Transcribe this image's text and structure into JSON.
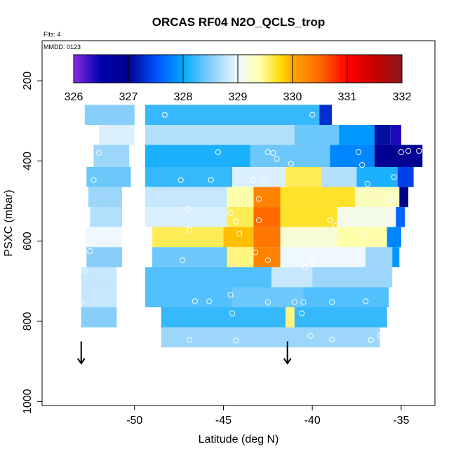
{
  "chart_data": {
    "type": "heatmap",
    "title": "ORCAS RF04 N2O_QCLS_trop",
    "subtitle_flts": "Flts: 4",
    "subtitle_mmdd": "MMDD: 0123",
    "xlabel": "Latitude (deg N)",
    "ylabel": "PSXC (mbar)",
    "xlim": [
      -55.2,
      -33.1
    ],
    "ylim": [
      1010,
      100
    ],
    "x_ticks": [
      -50,
      -45,
      -40,
      -35
    ],
    "x_tick_labels": [
      "-50",
      "-45",
      "-40",
      "-35"
    ],
    "y_ticks": [
      200,
      400,
      600,
      800,
      1000
    ],
    "y_tick_labels": [
      "200",
      "400",
      "600",
      "800",
      "1000"
    ],
    "colorbar": {
      "min": 326,
      "max": 332,
      "ticks": [
        326,
        327,
        328,
        329,
        330,
        331,
        332
      ],
      "tick_labels": [
        "326",
        "327",
        "328",
        "329",
        "330",
        "331",
        "332"
      ],
      "stops": [
        {
          "v": 326.0,
          "color": "#8a2be2"
        },
        {
          "v": 326.5,
          "color": "#0000b0"
        },
        {
          "v": 327.0,
          "color": "#00008b"
        },
        {
          "v": 327.5,
          "color": "#0050ff"
        },
        {
          "v": 328.0,
          "color": "#00aaff"
        },
        {
          "v": 328.5,
          "color": "#87cefa"
        },
        {
          "v": 329.0,
          "color": "#f0f8ff"
        },
        {
          "v": 329.4,
          "color": "#ffffaa"
        },
        {
          "v": 329.8,
          "color": "#ffd700"
        },
        {
          "v": 330.0,
          "color": "#ffa500"
        },
        {
          "v": 330.5,
          "color": "#ff6a00"
        },
        {
          "v": 331.0,
          "color": "#ff0000"
        },
        {
          "v": 331.5,
          "color": "#c80000"
        },
        {
          "v": 332.0,
          "color": "#8b1a1a"
        }
      ]
    },
    "rows": [
      {
        "p0": 260,
        "p1": 310,
        "segments": [
          {
            "lat0": -52.8,
            "lat1": -50.0,
            "value": 328.5
          },
          {
            "lat0": -49.4,
            "lat1": -39.6,
            "value": 328.2
          },
          {
            "lat0": -39.6,
            "lat1": -38.9,
            "value": 327.3
          }
        ]
      },
      {
        "p0": 310,
        "p1": 360,
        "segments": [
          {
            "lat0": -52.0,
            "lat1": -50.0,
            "value": 328.9
          },
          {
            "lat0": -49.4,
            "lat1": -41.0,
            "value": 328.7
          },
          {
            "lat0": -41.0,
            "lat1": -38.5,
            "value": 328.4
          },
          {
            "lat0": -38.5,
            "lat1": -36.5,
            "value": 327.9
          },
          {
            "lat0": -36.5,
            "lat1": -35.6,
            "value": 327.1
          },
          {
            "lat0": -35.6,
            "lat1": -35.0,
            "value": 326.4
          }
        ]
      },
      {
        "p0": 360,
        "p1": 415,
        "segments": [
          {
            "lat0": -52.3,
            "lat1": -50.3,
            "value": 328.6
          },
          {
            "lat0": -49.4,
            "lat1": -43.5,
            "value": 328.1
          },
          {
            "lat0": -43.5,
            "lat1": -39.0,
            "value": 328.4
          },
          {
            "lat0": -39.0,
            "lat1": -36.5,
            "value": 327.8
          },
          {
            "lat0": -36.5,
            "lat1": -33.8,
            "value": 326.9
          }
        ]
      },
      {
        "p0": 415,
        "p1": 465,
        "segments": [
          {
            "lat0": -52.7,
            "lat1": -50.2,
            "value": 328.4
          },
          {
            "lat0": -49.4,
            "lat1": -44.5,
            "value": 328.2
          },
          {
            "lat0": -44.5,
            "lat1": -41.5,
            "value": 328.9
          },
          {
            "lat0": -41.5,
            "lat1": -39.5,
            "value": 329.6
          },
          {
            "lat0": -39.5,
            "lat1": -37.5,
            "value": 328.7
          },
          {
            "lat0": -37.5,
            "lat1": -35.2,
            "value": 328.1
          },
          {
            "lat0": -35.2,
            "lat1": -34.3,
            "value": 327.4
          }
        ]
      },
      {
        "p0": 465,
        "p1": 515,
        "segments": [
          {
            "lat0": -52.6,
            "lat1": -50.7,
            "value": 328.6
          },
          {
            "lat0": -49.4,
            "lat1": -44.8,
            "value": 328.8
          },
          {
            "lat0": -44.8,
            "lat1": -43.3,
            "value": 329.4
          },
          {
            "lat0": -43.3,
            "lat1": -41.8,
            "value": 330.3
          },
          {
            "lat0": -41.8,
            "lat1": -37.6,
            "value": 329.7
          },
          {
            "lat0": -37.6,
            "lat1": -35.1,
            "value": 329.3
          },
          {
            "lat0": -35.1,
            "lat1": -34.6,
            "value": 327.0
          }
        ]
      },
      {
        "p0": 515,
        "p1": 565,
        "segments": [
          {
            "lat0": -52.5,
            "lat1": -50.7,
            "value": 328.7
          },
          {
            "lat0": -49.4,
            "lat1": -44.8,
            "value": 328.9
          },
          {
            "lat0": -44.8,
            "lat1": -43.3,
            "value": 329.6
          },
          {
            "lat0": -43.3,
            "lat1": -41.8,
            "value": 330.5
          },
          {
            "lat0": -41.8,
            "lat1": -38.6,
            "value": 329.7
          },
          {
            "lat0": -38.6,
            "lat1": -35.3,
            "value": 329.1
          },
          {
            "lat0": -35.3,
            "lat1": -34.8,
            "value": 327.6
          }
        ]
      },
      {
        "p0": 565,
        "p1": 615,
        "segments": [
          {
            "lat0": -52.8,
            "lat1": -50.7,
            "value": 329.0
          },
          {
            "lat0": -49.0,
            "lat1": -45.0,
            "value": 329.6
          },
          {
            "lat0": -45.0,
            "lat1": -43.3,
            "value": 329.9
          },
          {
            "lat0": -43.3,
            "lat1": -41.8,
            "value": 330.4
          },
          {
            "lat0": -41.8,
            "lat1": -38.6,
            "value": 329.2
          },
          {
            "lat0": -38.6,
            "lat1": -35.8,
            "value": 329.4
          },
          {
            "lat0": -35.8,
            "lat1": -35.0,
            "value": 327.8
          }
        ]
      },
      {
        "p0": 615,
        "p1": 665,
        "segments": [
          {
            "lat0": -52.7,
            "lat1": -50.7,
            "value": 328.5
          },
          {
            "lat0": -49.0,
            "lat1": -44.8,
            "value": 328.4
          },
          {
            "lat0": -44.8,
            "lat1": -43.3,
            "value": 329.5
          },
          {
            "lat0": -43.3,
            "lat1": -41.8,
            "value": 330.3
          },
          {
            "lat0": -41.8,
            "lat1": -37.0,
            "value": 329.0
          },
          {
            "lat0": -37.0,
            "lat1": -35.5,
            "value": 328.6
          },
          {
            "lat0": -35.5,
            "lat1": -35.1,
            "value": 327.9
          }
        ]
      },
      {
        "p0": 665,
        "p1": 715,
        "segments": [
          {
            "lat0": -53.0,
            "lat1": -51.0,
            "value": 328.8
          },
          {
            "lat0": -49.4,
            "lat1": -42.3,
            "value": 328.3
          },
          {
            "lat0": -42.3,
            "lat1": -40.0,
            "value": 328.8
          },
          {
            "lat0": -40.0,
            "lat1": -35.5,
            "value": 328.6
          }
        ]
      },
      {
        "p0": 715,
        "p1": 765,
        "segments": [
          {
            "lat0": -53.0,
            "lat1": -51.0,
            "value": 328.8
          },
          {
            "lat0": -49.4,
            "lat1": -44.5,
            "value": 328.3
          },
          {
            "lat0": -44.5,
            "lat1": -40.5,
            "value": 328.4
          },
          {
            "lat0": -40.5,
            "lat1": -35.7,
            "value": 328.3
          }
        ]
      },
      {
        "p0": 765,
        "p1": 815,
        "segments": [
          {
            "lat0": -53.0,
            "lat1": -51.0,
            "value": 328.5
          },
          {
            "lat0": -48.5,
            "lat1": -41.5,
            "value": 328.2
          },
          {
            "lat0": -41.5,
            "lat1": -41.0,
            "value": 329.5
          },
          {
            "lat0": -41.0,
            "lat1": -35.8,
            "value": 328.2
          }
        ]
      },
      {
        "p0": 815,
        "p1": 865,
        "segments": [
          {
            "lat0": -48.5,
            "lat1": -36.2,
            "value": 328.6
          }
        ]
      }
    ],
    "points": [
      {
        "lat": -48.3,
        "p": 285
      },
      {
        "lat": -40.0,
        "p": 285
      },
      {
        "lat": -52.0,
        "p": 380
      },
      {
        "lat": -45.3,
        "p": 378
      },
      {
        "lat": -42.5,
        "p": 378
      },
      {
        "lat": -42.2,
        "p": 380
      },
      {
        "lat": -37.4,
        "p": 378
      },
      {
        "lat": -35.0,
        "p": 378
      },
      {
        "lat": -34.6,
        "p": 375
      },
      {
        "lat": -34.0,
        "p": 375
      },
      {
        "lat": -42.0,
        "p": 395
      },
      {
        "lat": -41.2,
        "p": 407
      },
      {
        "lat": -37.2,
        "p": 410
      },
      {
        "lat": -52.3,
        "p": 448
      },
      {
        "lat": -47.4,
        "p": 448
      },
      {
        "lat": -45.7,
        "p": 447
      },
      {
        "lat": -43.3,
        "p": 447
      },
      {
        "lat": -42.7,
        "p": 442
      },
      {
        "lat": -36.9,
        "p": 457
      },
      {
        "lat": -35.4,
        "p": 440
      },
      {
        "lat": -43.0,
        "p": 495
      },
      {
        "lat": -35.6,
        "p": 495
      },
      {
        "lat": -47.0,
        "p": 520
      },
      {
        "lat": -43.0,
        "p": 548
      },
      {
        "lat": -39.0,
        "p": 548
      },
      {
        "lat": -35.8,
        "p": 545
      },
      {
        "lat": -44.6,
        "p": 530
      },
      {
        "lat": -44.3,
        "p": 551
      },
      {
        "lat": -46.9,
        "p": 572
      },
      {
        "lat": -38.7,
        "p": 562
      },
      {
        "lat": -44.1,
        "p": 582
      },
      {
        "lat": -37.1,
        "p": 583
      },
      {
        "lat": -52.5,
        "p": 625
      },
      {
        "lat": -43.2,
        "p": 628
      },
      {
        "lat": -47.3,
        "p": 648
      },
      {
        "lat": -42.5,
        "p": 648
      },
      {
        "lat": -40.0,
        "p": 648
      },
      {
        "lat": -52.8,
        "p": 676
      },
      {
        "lat": -40.4,
        "p": 666
      },
      {
        "lat": -44.6,
        "p": 734
      },
      {
        "lat": -53.0,
        "p": 752
      },
      {
        "lat": -46.6,
        "p": 750
      },
      {
        "lat": -45.8,
        "p": 750
      },
      {
        "lat": -42.5,
        "p": 752
      },
      {
        "lat": -41.0,
        "p": 752
      },
      {
        "lat": -40.5,
        "p": 752
      },
      {
        "lat": -38.9,
        "p": 752
      },
      {
        "lat": -37.0,
        "p": 750
      },
      {
        "lat": -40.6,
        "p": 780
      },
      {
        "lat": -44.5,
        "p": 780
      },
      {
        "lat": -40.1,
        "p": 836
      },
      {
        "lat": -38.9,
        "p": 845
      },
      {
        "lat": -44.3,
        "p": 848
      },
      {
        "lat": -46.9,
        "p": 846
      },
      {
        "lat": -36.7,
        "p": 847
      },
      {
        "lat": -36.2,
        "p": 836
      }
    ],
    "arrows": [
      {
        "lat": -53.0,
        "p0": 850,
        "p1": 905
      },
      {
        "lat": -41.4,
        "p0": 850,
        "p1": 905
      }
    ]
  }
}
